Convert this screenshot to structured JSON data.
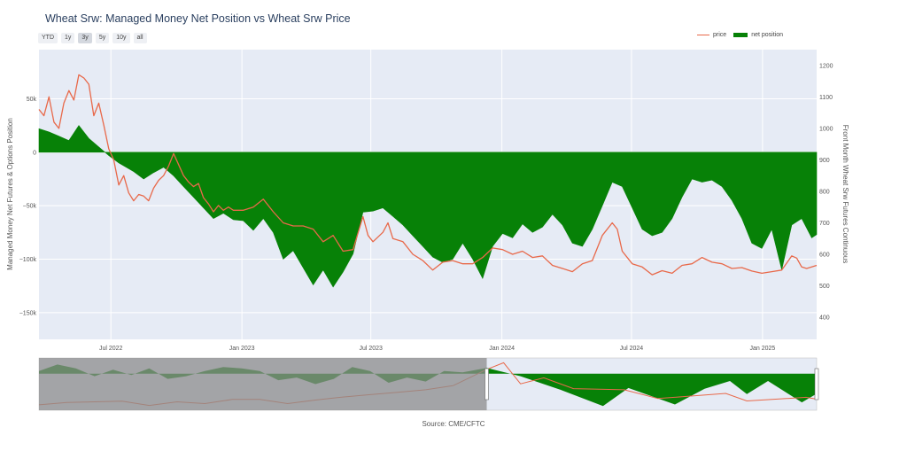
{
  "title": "Wheat Srw: Managed Money Net Position vs Wheat Srw Price",
  "range_buttons": [
    "YTD",
    "1y",
    "3y",
    "5y",
    "10y",
    "all"
  ],
  "active_range": "3y",
  "legend": {
    "price": "price",
    "net_position": "net position"
  },
  "source": "Source: CME/CFTC",
  "colors": {
    "price": "#e8694a",
    "net_position": "#078107",
    "plot_bg": "#e6ebf5",
    "rangeslider_shade": "#8c8c8c"
  },
  "chart_data": {
    "type": "area",
    "title": "Wheat Srw: Managed Money Net Position vs Wheat Srw Price",
    "ylabel": "Managed Money Net Futures & Options Position",
    "y2label": "Front Month Wheat Srw Futures Continuous",
    "ylim": [
      -175000,
      96000
    ],
    "y2lim": [
      330,
      1250
    ],
    "x_range": [
      "2022-03-22",
      "2025-03-18"
    ],
    "x_tick_labels": [
      "Jul 2022",
      "Jan 2023",
      "Jul 2023",
      "Jan 2024",
      "Jul 2024",
      "Jan 2025"
    ],
    "y_tick_labels": [
      "50k",
      "0",
      "−50k",
      "−100k",
      "−150k"
    ],
    "y_tick_values": [
      50000,
      0,
      -50000,
      -100000,
      -150000
    ],
    "y2_tick_labels": [
      "1200",
      "1100",
      "1000",
      "900",
      "800",
      "700",
      "600",
      "500",
      "400"
    ],
    "y2_tick_values": [
      1200,
      1100,
      1000,
      900,
      800,
      700,
      600,
      500,
      400
    ],
    "grid": true,
    "legend_position": "top-right",
    "series": [
      {
        "name": "net position",
        "axis": "left",
        "points": [
          [
            "2022-03-22",
            22000
          ],
          [
            "2022-04-05",
            19000
          ],
          [
            "2022-04-19",
            15000
          ],
          [
            "2022-05-03",
            11000
          ],
          [
            "2022-05-17",
            25000
          ],
          [
            "2022-05-31",
            13000
          ],
          [
            "2022-06-14",
            5000
          ],
          [
            "2022-06-28",
            -3000
          ],
          [
            "2022-07-12",
            -10000
          ],
          [
            "2022-08-02",
            -18000
          ],
          [
            "2022-08-16",
            -25000
          ],
          [
            "2022-08-30",
            -19000
          ],
          [
            "2022-09-13",
            -14000
          ],
          [
            "2022-09-27",
            -22000
          ],
          [
            "2022-10-11",
            -32000
          ],
          [
            "2022-10-25",
            -42000
          ],
          [
            "2022-11-08",
            -52000
          ],
          [
            "2022-11-22",
            -62000
          ],
          [
            "2022-12-06",
            -57000
          ],
          [
            "2022-12-20",
            -63000
          ],
          [
            "2023-01-03",
            -64000
          ],
          [
            "2023-01-17",
            -73000
          ],
          [
            "2023-01-31",
            -62000
          ],
          [
            "2023-02-14",
            -75000
          ],
          [
            "2023-02-28",
            -100000
          ],
          [
            "2023-03-14",
            -92000
          ],
          [
            "2023-03-28",
            -108000
          ],
          [
            "2023-04-11",
            -124000
          ],
          [
            "2023-04-25",
            -110000
          ],
          [
            "2023-05-09",
            -126000
          ],
          [
            "2023-05-23",
            -112000
          ],
          [
            "2023-06-06",
            -95000
          ],
          [
            "2023-06-20",
            -56000
          ],
          [
            "2023-07-04",
            -55000
          ],
          [
            "2023-07-18",
            -52000
          ],
          [
            "2023-08-01",
            -60000
          ],
          [
            "2023-08-15",
            -68000
          ],
          [
            "2023-08-29",
            -78000
          ],
          [
            "2023-09-12",
            -88000
          ],
          [
            "2023-09-26",
            -98000
          ],
          [
            "2023-10-10",
            -103000
          ],
          [
            "2023-10-24",
            -100000
          ],
          [
            "2023-11-07",
            -85000
          ],
          [
            "2023-11-21",
            -100000
          ],
          [
            "2023-12-05",
            -118000
          ],
          [
            "2023-12-19",
            -88000
          ],
          [
            "2024-01-02",
            -76000
          ],
          [
            "2024-01-16",
            -80000
          ],
          [
            "2024-01-30",
            -67000
          ],
          [
            "2024-02-13",
            -75000
          ],
          [
            "2024-02-27",
            -70000
          ],
          [
            "2024-03-12",
            -58000
          ],
          [
            "2024-03-26",
            -68000
          ],
          [
            "2024-04-09",
            -85000
          ],
          [
            "2024-04-23",
            -88000
          ],
          [
            "2024-05-07",
            -72000
          ],
          [
            "2024-05-21",
            -50000
          ],
          [
            "2024-06-04",
            -28000
          ],
          [
            "2024-06-18",
            -32000
          ],
          [
            "2024-07-02",
            -52000
          ],
          [
            "2024-07-16",
            -72000
          ],
          [
            "2024-07-30",
            -78000
          ],
          [
            "2024-08-13",
            -75000
          ],
          [
            "2024-08-27",
            -62000
          ],
          [
            "2024-09-10",
            -42000
          ],
          [
            "2024-09-24",
            -25000
          ],
          [
            "2024-10-08",
            -28000
          ],
          [
            "2024-10-22",
            -26000
          ],
          [
            "2024-11-05",
            -32000
          ],
          [
            "2024-11-19",
            -45000
          ],
          [
            "2024-12-03",
            -62000
          ],
          [
            "2024-12-17",
            -85000
          ],
          [
            "2024-12-31",
            -90000
          ],
          [
            "2025-01-14",
            -72000
          ],
          [
            "2025-01-28",
            -110000
          ],
          [
            "2025-02-11",
            -68000
          ],
          [
            "2025-02-25",
            -62000
          ],
          [
            "2025-03-11",
            -80000
          ],
          [
            "2025-03-18",
            -77000
          ]
        ]
      },
      {
        "name": "price",
        "axis": "right",
        "points": [
          [
            "2022-03-22",
            1060
          ],
          [
            "2022-03-29",
            1040
          ],
          [
            "2022-04-05",
            1100
          ],
          [
            "2022-04-12",
            1020
          ],
          [
            "2022-04-19",
            1000
          ],
          [
            "2022-04-26",
            1080
          ],
          [
            "2022-05-03",
            1120
          ],
          [
            "2022-05-10",
            1090
          ],
          [
            "2022-05-17",
            1170
          ],
          [
            "2022-05-24",
            1160
          ],
          [
            "2022-05-31",
            1140
          ],
          [
            "2022-06-07",
            1040
          ],
          [
            "2022-06-14",
            1080
          ],
          [
            "2022-06-21",
            1010
          ],
          [
            "2022-06-28",
            935
          ],
          [
            "2022-07-05",
            900
          ],
          [
            "2022-07-12",
            820
          ],
          [
            "2022-07-19",
            850
          ],
          [
            "2022-07-26",
            795
          ],
          [
            "2022-08-02",
            770
          ],
          [
            "2022-08-09",
            790
          ],
          [
            "2022-08-16",
            785
          ],
          [
            "2022-08-23",
            770
          ],
          [
            "2022-08-30",
            810
          ],
          [
            "2022-09-06",
            835
          ],
          [
            "2022-09-13",
            850
          ],
          [
            "2022-09-20",
            880
          ],
          [
            "2022-09-27",
            920
          ],
          [
            "2022-10-04",
            885
          ],
          [
            "2022-10-11",
            850
          ],
          [
            "2022-10-18",
            830
          ],
          [
            "2022-10-25",
            815
          ],
          [
            "2022-11-01",
            825
          ],
          [
            "2022-11-08",
            780
          ],
          [
            "2022-11-15",
            760
          ],
          [
            "2022-11-22",
            735
          ],
          [
            "2022-11-29",
            755
          ],
          [
            "2022-12-06",
            740
          ],
          [
            "2022-12-13",
            750
          ],
          [
            "2022-12-20",
            740
          ],
          [
            "2023-01-03",
            740
          ],
          [
            "2023-01-17",
            750
          ],
          [
            "2023-01-31",
            775
          ],
          [
            "2023-02-14",
            735
          ],
          [
            "2023-02-28",
            700
          ],
          [
            "2023-03-14",
            690
          ],
          [
            "2023-03-28",
            690
          ],
          [
            "2023-04-11",
            680
          ],
          [
            "2023-04-25",
            640
          ],
          [
            "2023-05-09",
            660
          ],
          [
            "2023-05-23",
            610
          ],
          [
            "2023-06-06",
            615
          ],
          [
            "2023-06-20",
            720
          ],
          [
            "2023-06-27",
            660
          ],
          [
            "2023-07-04",
            640
          ],
          [
            "2023-07-18",
            670
          ],
          [
            "2023-07-25",
            700
          ],
          [
            "2023-08-01",
            650
          ],
          [
            "2023-08-15",
            640
          ],
          [
            "2023-08-29",
            600
          ],
          [
            "2023-09-12",
            580
          ],
          [
            "2023-09-26",
            550
          ],
          [
            "2023-10-10",
            575
          ],
          [
            "2023-10-24",
            580
          ],
          [
            "2023-11-07",
            570
          ],
          [
            "2023-11-21",
            570
          ],
          [
            "2023-12-05",
            590
          ],
          [
            "2023-12-19",
            620
          ],
          [
            "2024-01-02",
            615
          ],
          [
            "2024-01-16",
            600
          ],
          [
            "2024-01-30",
            610
          ],
          [
            "2024-02-13",
            590
          ],
          [
            "2024-02-27",
            595
          ],
          [
            "2024-03-12",
            565
          ],
          [
            "2024-03-26",
            555
          ],
          [
            "2024-04-09",
            545
          ],
          [
            "2024-04-23",
            570
          ],
          [
            "2024-05-07",
            580
          ],
          [
            "2024-05-21",
            660
          ],
          [
            "2024-06-04",
            700
          ],
          [
            "2024-06-11",
            680
          ],
          [
            "2024-06-18",
            610
          ],
          [
            "2024-07-02",
            570
          ],
          [
            "2024-07-16",
            560
          ],
          [
            "2024-07-30",
            535
          ],
          [
            "2024-08-13",
            548
          ],
          [
            "2024-08-27",
            540
          ],
          [
            "2024-09-10",
            565
          ],
          [
            "2024-09-24",
            570
          ],
          [
            "2024-10-08",
            590
          ],
          [
            "2024-10-22",
            575
          ],
          [
            "2024-11-05",
            570
          ],
          [
            "2024-11-19",
            555
          ],
          [
            "2024-12-03",
            558
          ],
          [
            "2024-12-17",
            547
          ],
          [
            "2024-12-31",
            540
          ],
          [
            "2025-01-14",
            545
          ],
          [
            "2025-01-28",
            550
          ],
          [
            "2025-02-11",
            595
          ],
          [
            "2025-02-18",
            588
          ],
          [
            "2025-02-25",
            560
          ],
          [
            "2025-03-04",
            555
          ],
          [
            "2025-03-11",
            560
          ],
          [
            "2025-03-18",
            565
          ]
        ]
      }
    ],
    "range_slider": {
      "x_range": [
        "2018-03-01",
        "2025-03-18"
      ],
      "selected": [
        "2022-03-22",
        "2025-03-18"
      ],
      "net_position_overview": [
        [
          "2018-03-01",
          10000
        ],
        [
          "2018-05-01",
          35000
        ],
        [
          "2018-07-01",
          20000
        ],
        [
          "2018-09-01",
          -10000
        ],
        [
          "2018-11-01",
          15000
        ],
        [
          "2019-01-01",
          -5000
        ],
        [
          "2019-03-01",
          20000
        ],
        [
          "2019-05-01",
          -20000
        ],
        [
          "2019-07-01",
          -10000
        ],
        [
          "2019-09-01",
          10000
        ],
        [
          "2019-11-01",
          25000
        ],
        [
          "2020-01-01",
          20000
        ],
        [
          "2020-03-01",
          10000
        ],
        [
          "2020-05-01",
          -25000
        ],
        [
          "2020-07-01",
          -15000
        ],
        [
          "2020-09-01",
          -40000
        ],
        [
          "2020-11-01",
          -20000
        ],
        [
          "2021-01-01",
          25000
        ],
        [
          "2021-03-01",
          10000
        ],
        [
          "2021-05-01",
          -35000
        ],
        [
          "2021-07-01",
          -15000
        ],
        [
          "2021-09-01",
          -30000
        ],
        [
          "2021-11-01",
          10000
        ],
        [
          "2022-01-01",
          5000
        ],
        [
          "2022-03-22",
          22000
        ],
        [
          "2022-07-12",
          -10000
        ],
        [
          "2022-11-22",
          -62000
        ],
        [
          "2023-04-11",
          -124000
        ],
        [
          "2023-07-04",
          -55000
        ],
        [
          "2023-12-05",
          -118000
        ],
        [
          "2024-03-12",
          -58000
        ],
        [
          "2024-06-04",
          -28000
        ],
        [
          "2024-07-30",
          -78000
        ],
        [
          "2024-10-08",
          -28000
        ],
        [
          "2025-01-28",
          -110000
        ],
        [
          "2025-03-18",
          -77000
        ]
      ],
      "price_overview": [
        [
          "2018-03-01",
          470
        ],
        [
          "2018-06-01",
          510
        ],
        [
          "2018-09-01",
          520
        ],
        [
          "2018-12-01",
          530
        ],
        [
          "2019-03-01",
          460
        ],
        [
          "2019-06-01",
          520
        ],
        [
          "2019-09-01",
          490
        ],
        [
          "2019-12-01",
          560
        ],
        [
          "2020-03-01",
          560
        ],
        [
          "2020-06-01",
          490
        ],
        [
          "2020-09-01",
          550
        ],
        [
          "2020-12-01",
          600
        ],
        [
          "2021-03-01",
          640
        ],
        [
          "2021-06-01",
          680
        ],
        [
          "2021-09-01",
          720
        ],
        [
          "2021-12-01",
          790
        ],
        [
          "2022-03-22",
          1060
        ],
        [
          "2022-05-17",
          1170
        ],
        [
          "2022-07-12",
          820
        ],
        [
          "2022-09-27",
          920
        ],
        [
          "2023-01-03",
          740
        ],
        [
          "2023-06-20",
          720
        ],
        [
          "2023-10-10",
          575
        ],
        [
          "2024-05-21",
          660
        ],
        [
          "2024-07-30",
          535
        ],
        [
          "2025-02-11",
          595
        ],
        [
          "2025-03-18",
          565
        ]
      ]
    }
  }
}
